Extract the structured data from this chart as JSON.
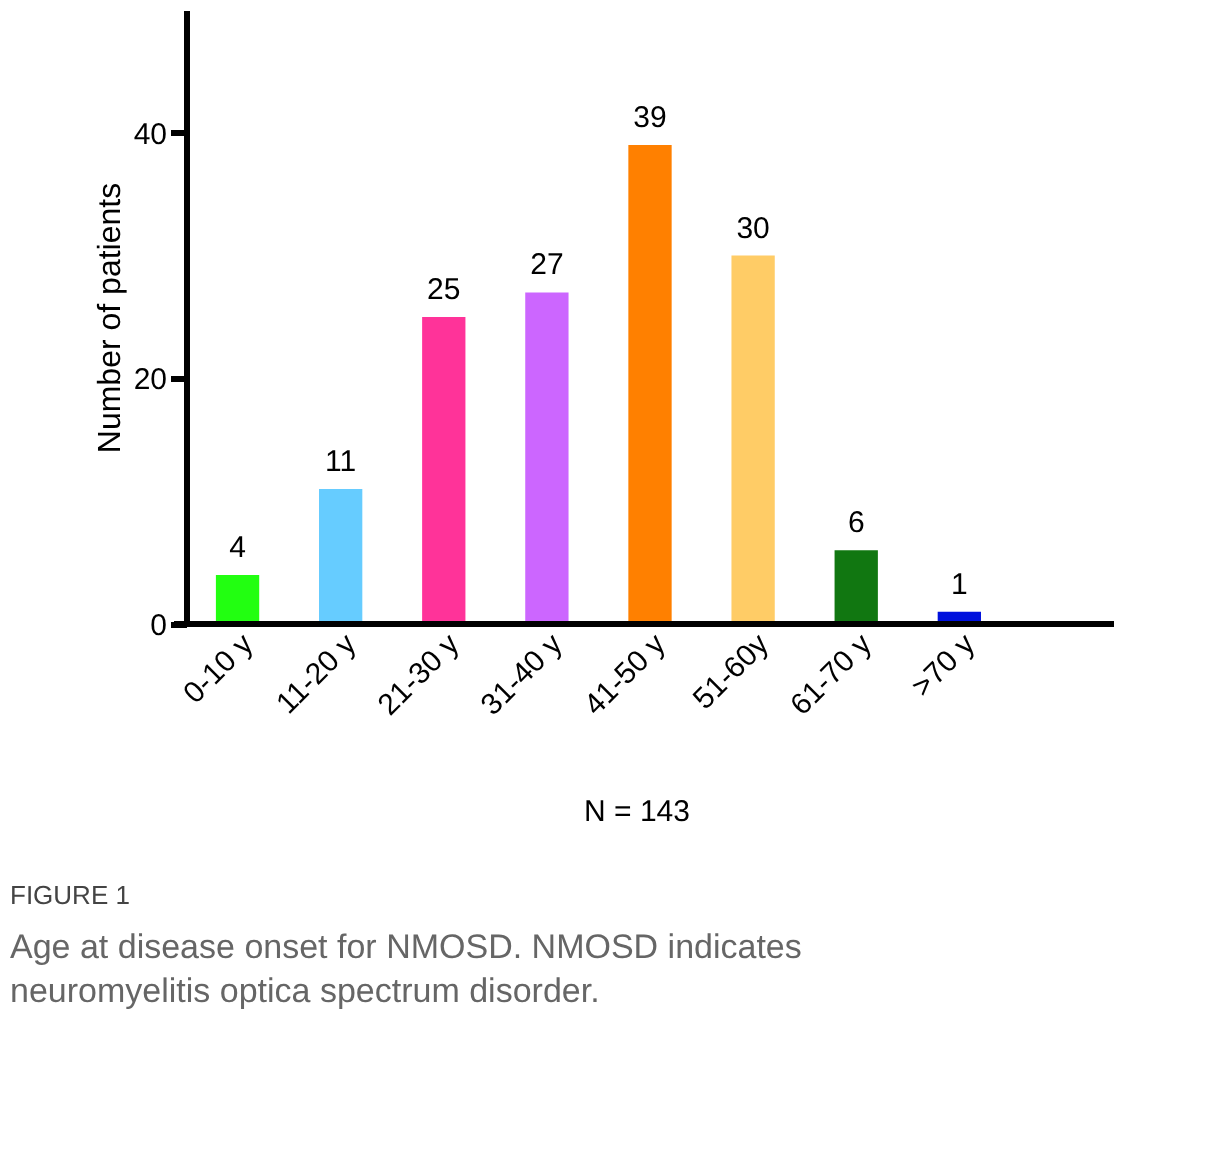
{
  "chart_data": {
    "type": "bar",
    "ylabel": "Number of patients",
    "xlabel": "N = 143",
    "categories": [
      "0-10 y",
      "11-20 y",
      "21-30 y",
      "31-40 y",
      "41-50 y",
      "51-60y",
      "61-70 y",
      ">70 y"
    ],
    "values": [
      4,
      11,
      25,
      27,
      39,
      30,
      6,
      1
    ],
    "colors": [
      "#22ff11",
      "#66ccff",
      "#ff3399",
      "#cc66ff",
      "#ff8000",
      "#ffcc66",
      "#117711",
      "#0011dd"
    ],
    "ylim": [
      0,
      50
    ],
    "yticks": [
      0,
      20,
      40
    ],
    "data_labels": true,
    "annotations": [
      "FIGURE 1",
      "Age at disease onset for NMOSD. NMOSD indicates neuromyelitis optica spectrum disorder."
    ]
  }
}
